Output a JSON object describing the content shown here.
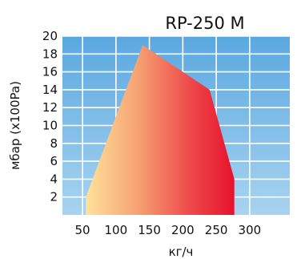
{
  "chart_data": {
    "type": "area",
    "title": "RP-250 M",
    "xlabel": "кг/ч",
    "ylabel": "мбар (x100Pa)",
    "xlim": [
      20,
      360
    ],
    "ylim": [
      0,
      20
    ],
    "x_ticks": [
      50,
      100,
      150,
      200,
      250,
      300
    ],
    "y_ticks": [
      2,
      4,
      6,
      8,
      10,
      12,
      14,
      16,
      18,
      20
    ],
    "grid": true,
    "x": [
      55,
      140,
      200,
      240,
      277,
      277,
      55
    ],
    "y": [
      2,
      19,
      16,
      14,
      4,
      0,
      0
    ],
    "colors": {
      "background_top": "#5aa8e0",
      "background_bottom": "#a9d3f0",
      "gradient": [
        "#ffe29a",
        "#f6a173",
        "#ee4a4a",
        "#e8112d"
      ]
    }
  }
}
